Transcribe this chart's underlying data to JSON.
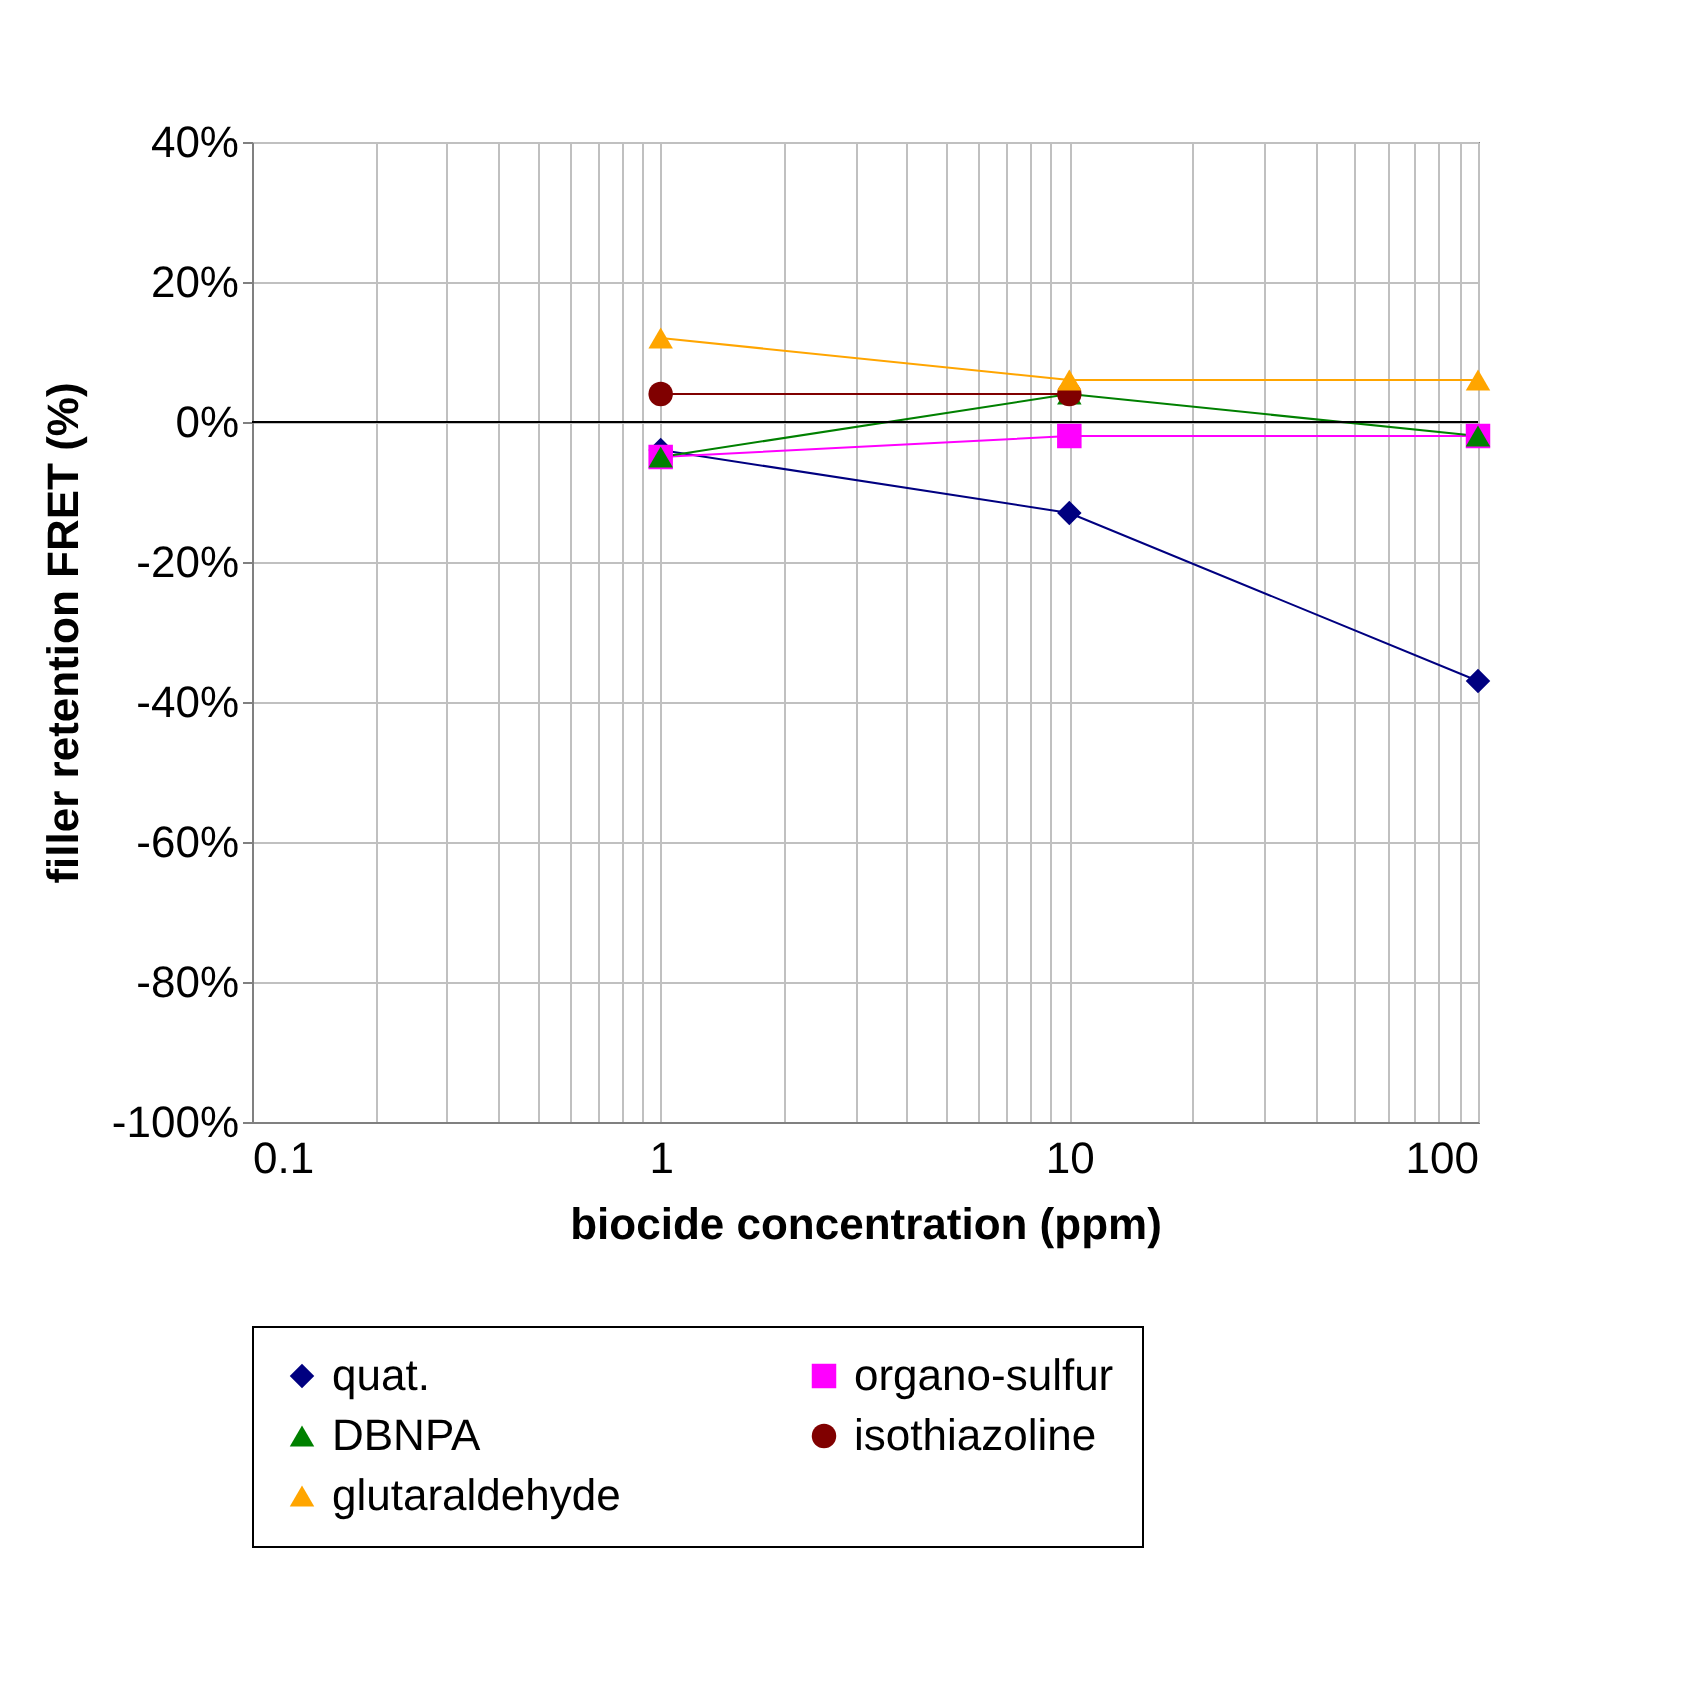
{
  "chart_data": {
    "type": "line",
    "xlabel": "biocide concentration (ppm)",
    "ylabel": "filler retention FRET (%)",
    "x": [
      1,
      10,
      100
    ],
    "log": "x",
    "xlim": [
      0.1,
      100
    ],
    "xticks": [
      0.1,
      {
        "value": 0.2,
        "label": null
      },
      {
        "value": 0.3,
        "label": null
      },
      {
        "value": 0.4,
        "label": null
      },
      {
        "value": 0.5,
        "label": null
      },
      {
        "value": 0.6,
        "label": null
      },
      {
        "value": 0.7,
        "label": null
      },
      {
        "value": 0.8,
        "label": null
      },
      {
        "value": 0.9,
        "label": null
      },
      1,
      {
        "value": 2,
        "label": null
      },
      {
        "value": 3,
        "label": null
      },
      {
        "value": 4,
        "label": null
      },
      {
        "value": 5,
        "label": null
      },
      {
        "value": 6,
        "label": null
      },
      {
        "value": 7,
        "label": null
      },
      {
        "value": 8,
        "label": null
      },
      {
        "value": 9,
        "label": null
      },
      10,
      {
        "value": 20,
        "label": null
      },
      {
        "value": 30,
        "label": null
      },
      {
        "value": 40,
        "label": null
      },
      {
        "value": 50,
        "label": null
      },
      {
        "value": 60,
        "label": null
      },
      {
        "value": 70,
        "label": null
      },
      {
        "value": 80,
        "label": null
      },
      {
        "value": 90,
        "label": null
      },
      100
    ],
    "ylim": [
      -100,
      40
    ],
    "yticks": [
      {
        "value": -100,
        "label": "-100%"
      },
      {
        "value": -80,
        "label": "-80%"
      },
      {
        "value": -60,
        "label": "-60%"
      },
      {
        "value": -40,
        "label": "-40%"
      },
      {
        "value": -20,
        "label": "-20%"
      },
      {
        "value": 0,
        "label": "0%"
      },
      {
        "value": 20,
        "label": "20%"
      },
      {
        "value": 40,
        "label": "40%"
      }
    ],
    "grid": true,
    "legend": "bottom",
    "line_style": "solid",
    "ref_lines": [
      {
        "axis": "y",
        "value": 0,
        "color": "#000000"
      }
    ],
    "series": [
      {
        "name": "quat.",
        "color": "#000080",
        "marker": "diamond",
        "values": [
          -4,
          -13,
          -37
        ]
      },
      {
        "name": "organo-sulfur",
        "color": "#ff00ff",
        "marker": "square",
        "values": [
          -5,
          -2,
          -2
        ]
      },
      {
        "name": "DBNPA",
        "color": "#008000",
        "marker": "triangle",
        "values": [
          -5,
          4,
          -2
        ]
      },
      {
        "name": "isothiazoline",
        "color": "#800000",
        "marker": "circle",
        "values": [
          4,
          4,
          null
        ]
      },
      {
        "name": "glutaraldehyde",
        "color": "#ffa500",
        "marker": "triangle",
        "values": [
          12,
          6,
          6
        ]
      }
    ]
  }
}
